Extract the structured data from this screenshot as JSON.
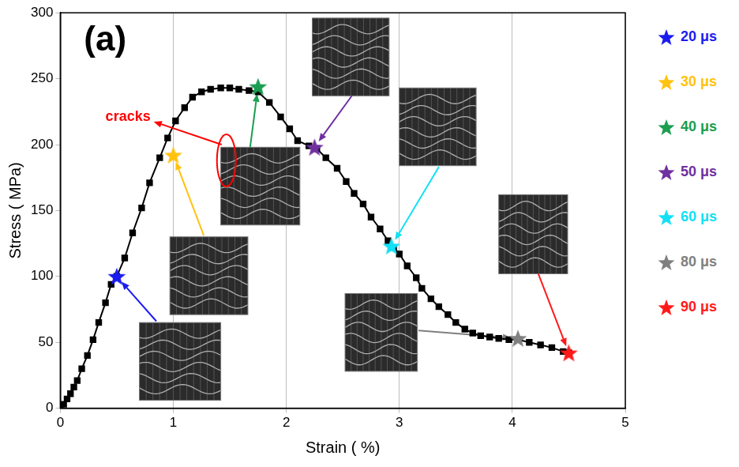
{
  "chart_data": {
    "type": "line",
    "panel_label": "(a)",
    "x_label": "Strain ( %)",
    "y_label": "Stress ( MPa)",
    "x": [
      0,
      0.03,
      0.06,
      0.09,
      0.12,
      0.15,
      0.19,
      0.24,
      0.29,
      0.34,
      0.4,
      0.45,
      0.5,
      0.57,
      0.64,
      0.72,
      0.79,
      0.88,
      0.95,
      1.02,
      1.1,
      1.17,
      1.25,
      1.33,
      1.42,
      1.5,
      1.58,
      1.67,
      1.75,
      1.85,
      1.95,
      2.03,
      2.1,
      2.2,
      2.27,
      2.35,
      2.45,
      2.53,
      2.6,
      2.68,
      2.75,
      2.83,
      2.9,
      2.95,
      3.0,
      3.07,
      3.15,
      3.2,
      3.28,
      3.35,
      3.43,
      3.5,
      3.58,
      3.65,
      3.72,
      3.8,
      3.88,
      3.97,
      4.05,
      4.15,
      4.25,
      4.35,
      4.45,
      4.5
    ],
    "values": [
      0,
      3,
      7,
      11,
      16,
      21,
      30,
      40,
      52,
      65,
      80,
      94,
      100,
      114,
      133,
      152,
      171,
      190,
      205,
      218,
      228,
      236,
      240,
      242,
      243,
      243,
      242,
      241,
      240,
      232,
      221,
      212,
      203,
      199,
      197,
      190,
      182,
      172,
      163,
      155,
      145,
      136,
      127,
      122,
      117,
      108,
      99,
      91,
      83,
      77,
      71,
      65,
      60,
      57,
      55,
      54,
      53,
      52,
      52,
      50,
      48,
      46,
      43,
      42
    ],
    "color": "#000000",
    "marker": "square",
    "line_style": "solid",
    "xlim": [
      0,
      5
    ],
    "xticks": [
      0,
      1,
      2,
      3,
      4,
      5
    ],
    "ylim": [
      0,
      300
    ],
    "yticks": [
      0,
      50,
      100,
      150,
      200,
      250,
      300
    ],
    "grid": "x",
    "legend": "right",
    "highlights": [
      {
        "name": "20 μs",
        "x": 0.5,
        "y": 100,
        "color": "#1c1cf0"
      },
      {
        "name": "30 μs",
        "x": 1.0,
        "y": 192,
        "color": "#ffc20e"
      },
      {
        "name": "40 μs",
        "x": 1.75,
        "y": 244,
        "color": "#1a9e50"
      },
      {
        "name": "50 μs",
        "x": 2.25,
        "y": 198,
        "color": "#7030a0"
      },
      {
        "name": "60 μs",
        "x": 2.93,
        "y": 123,
        "color": "#12e0f5"
      },
      {
        "name": "80 μs",
        "x": 4.05,
        "y": 53,
        "color": "#808080"
      },
      {
        "name": "90 μs",
        "x": 4.5,
        "y": 42,
        "color": "#ff1a1a"
      }
    ],
    "annotations": [
      {
        "text": "cracks",
        "color": "#ff0000"
      }
    ]
  }
}
